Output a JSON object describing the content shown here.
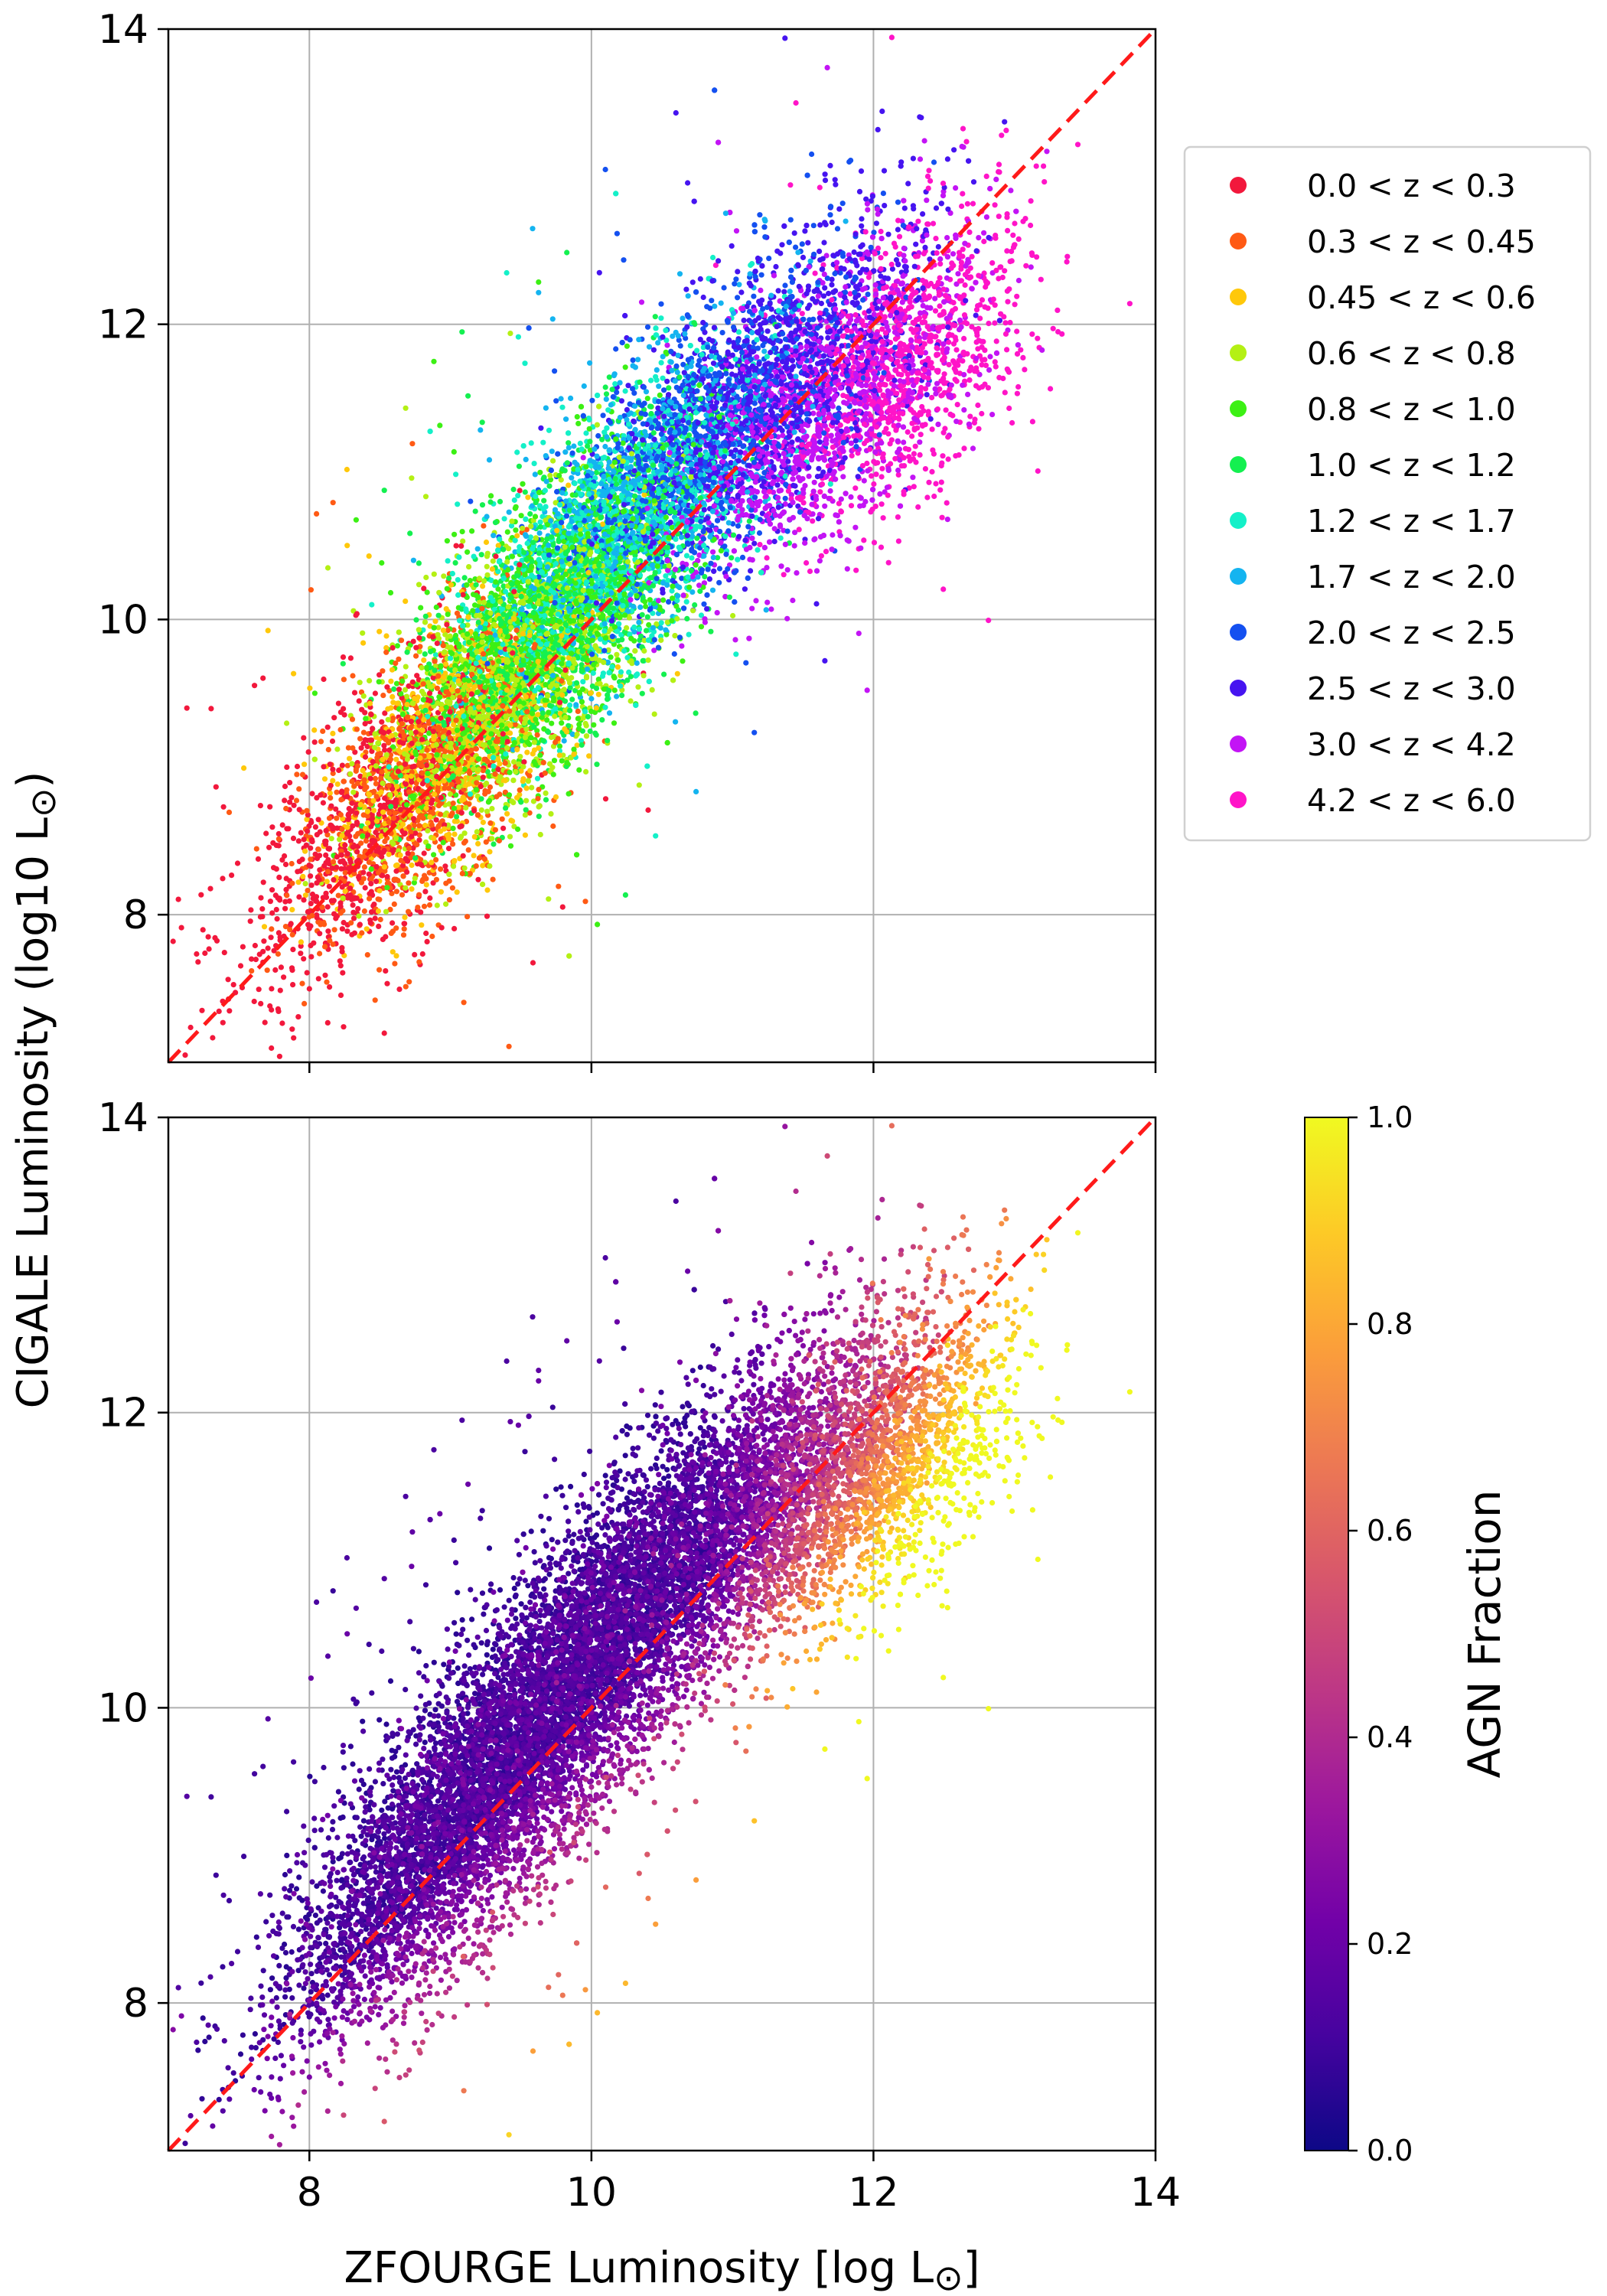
{
  "chart_data": [
    {
      "type": "scatter",
      "panel": "top",
      "xlim": [
        7,
        14
      ],
      "ylim": [
        7,
        14
      ],
      "xticks": [
        8,
        10,
        12,
        14
      ],
      "yticks": [
        8,
        10,
        12,
        14
      ],
      "grid": true,
      "reference_line": {
        "label": "",
        "color": "#ff1a1a",
        "style": "dashed",
        "x": [
          7,
          14
        ],
        "y": [
          7,
          14
        ]
      },
      "color_by": "redshift bin",
      "legend_position": "right, outside",
      "series": [
        {
          "name": "0.0 < z < 0.3",
          "color": "#f2183c",
          "center": [
            8.4,
            8.6
          ],
          "spread": [
            0.55,
            0.65
          ],
          "count": 900
        },
        {
          "name": "0.3 < z < 0.45",
          "color": "#ff5a14",
          "center": [
            8.8,
            8.9
          ],
          "spread": [
            0.45,
            0.5
          ],
          "count": 900
        },
        {
          "name": "0.45 < z < 0.6",
          "color": "#ffc80a",
          "center": [
            9.0,
            9.2
          ],
          "spread": [
            0.5,
            0.5
          ],
          "count": 700
        },
        {
          "name": "0.6 < z < 0.8",
          "color": "#b4f014",
          "center": [
            9.4,
            9.6
          ],
          "spread": [
            0.55,
            0.55
          ],
          "count": 1300
        },
        {
          "name": "0.8 < z < 1.0",
          "color": "#3cf014",
          "center": [
            9.6,
            9.9
          ],
          "spread": [
            0.55,
            0.6
          ],
          "count": 1300
        },
        {
          "name": "1.0 < z < 1.2",
          "color": "#14f050",
          "center": [
            9.8,
            10.1
          ],
          "spread": [
            0.55,
            0.6
          ],
          "count": 1100
        },
        {
          "name": "1.2 < z < 1.7",
          "color": "#14f0c8",
          "center": [
            10.1,
            10.5
          ],
          "spread": [
            0.6,
            0.6
          ],
          "count": 1400
        },
        {
          "name": "1.7 < z < 2.0",
          "color": "#14b4f0",
          "center": [
            10.3,
            10.8
          ],
          "spread": [
            0.55,
            0.6
          ],
          "count": 900
        },
        {
          "name": "2.0 < z < 2.5",
          "color": "#1450f0",
          "center": [
            10.8,
            11.2
          ],
          "spread": [
            0.6,
            0.6
          ],
          "count": 1400
        },
        {
          "name": "2.5 < z < 3.0",
          "color": "#4614f0",
          "center": [
            11.3,
            11.6
          ],
          "spread": [
            0.6,
            0.55
          ],
          "count": 1300
        },
        {
          "name": "3.0 < z < 4.2",
          "color": "#c314f5",
          "center": [
            11.6,
            11.4
          ],
          "spread": [
            0.6,
            0.55
          ],
          "count": 1500
        },
        {
          "name": "4.2 < z < 6.0",
          "color": "#ff14c8",
          "center": [
            12.2,
            11.7
          ],
          "spread": [
            0.45,
            0.45
          ],
          "count": 1000
        }
      ]
    },
    {
      "type": "scatter",
      "panel": "bottom",
      "xlim": [
        7,
        14
      ],
      "ylim": [
        7,
        14
      ],
      "xticks": [
        8,
        10,
        12,
        14
      ],
      "yticks": [
        8,
        10,
        12,
        14
      ],
      "grid": true,
      "xlabel": "ZFOURGE Luminosity [log L",
      "xlabel_symbol": "⊙",
      "xlabel_tail": "]",
      "ylabel": "CIGALE Luminosity (log10 L",
      "ylabel_symbol": "⊙",
      "ylabel_tail": ")",
      "reference_line": {
        "label": "",
        "color": "#ff1a1a",
        "style": "dashed",
        "x": [
          7,
          14
        ],
        "y": [
          7,
          14
        ]
      },
      "color_by": "AGN Fraction",
      "colormap": "plasma",
      "colorbar": {
        "label": "AGN Fraction",
        "range": [
          0.0,
          1.0
        ],
        "ticks": [
          "0.0",
          "0.2",
          "0.4",
          "0.6",
          "0.8",
          "1.0"
        ],
        "stops": [
          "#0d0887",
          "#46039f",
          "#7201a8",
          "#9c179e",
          "#bd3786",
          "#d8576b",
          "#ed7953",
          "#fb9f3a",
          "#fdca26",
          "#f0f921"
        ]
      },
      "population": "same galaxies as top panel; AGN fraction rises toward high x / below the 1:1 line"
    }
  ]
}
